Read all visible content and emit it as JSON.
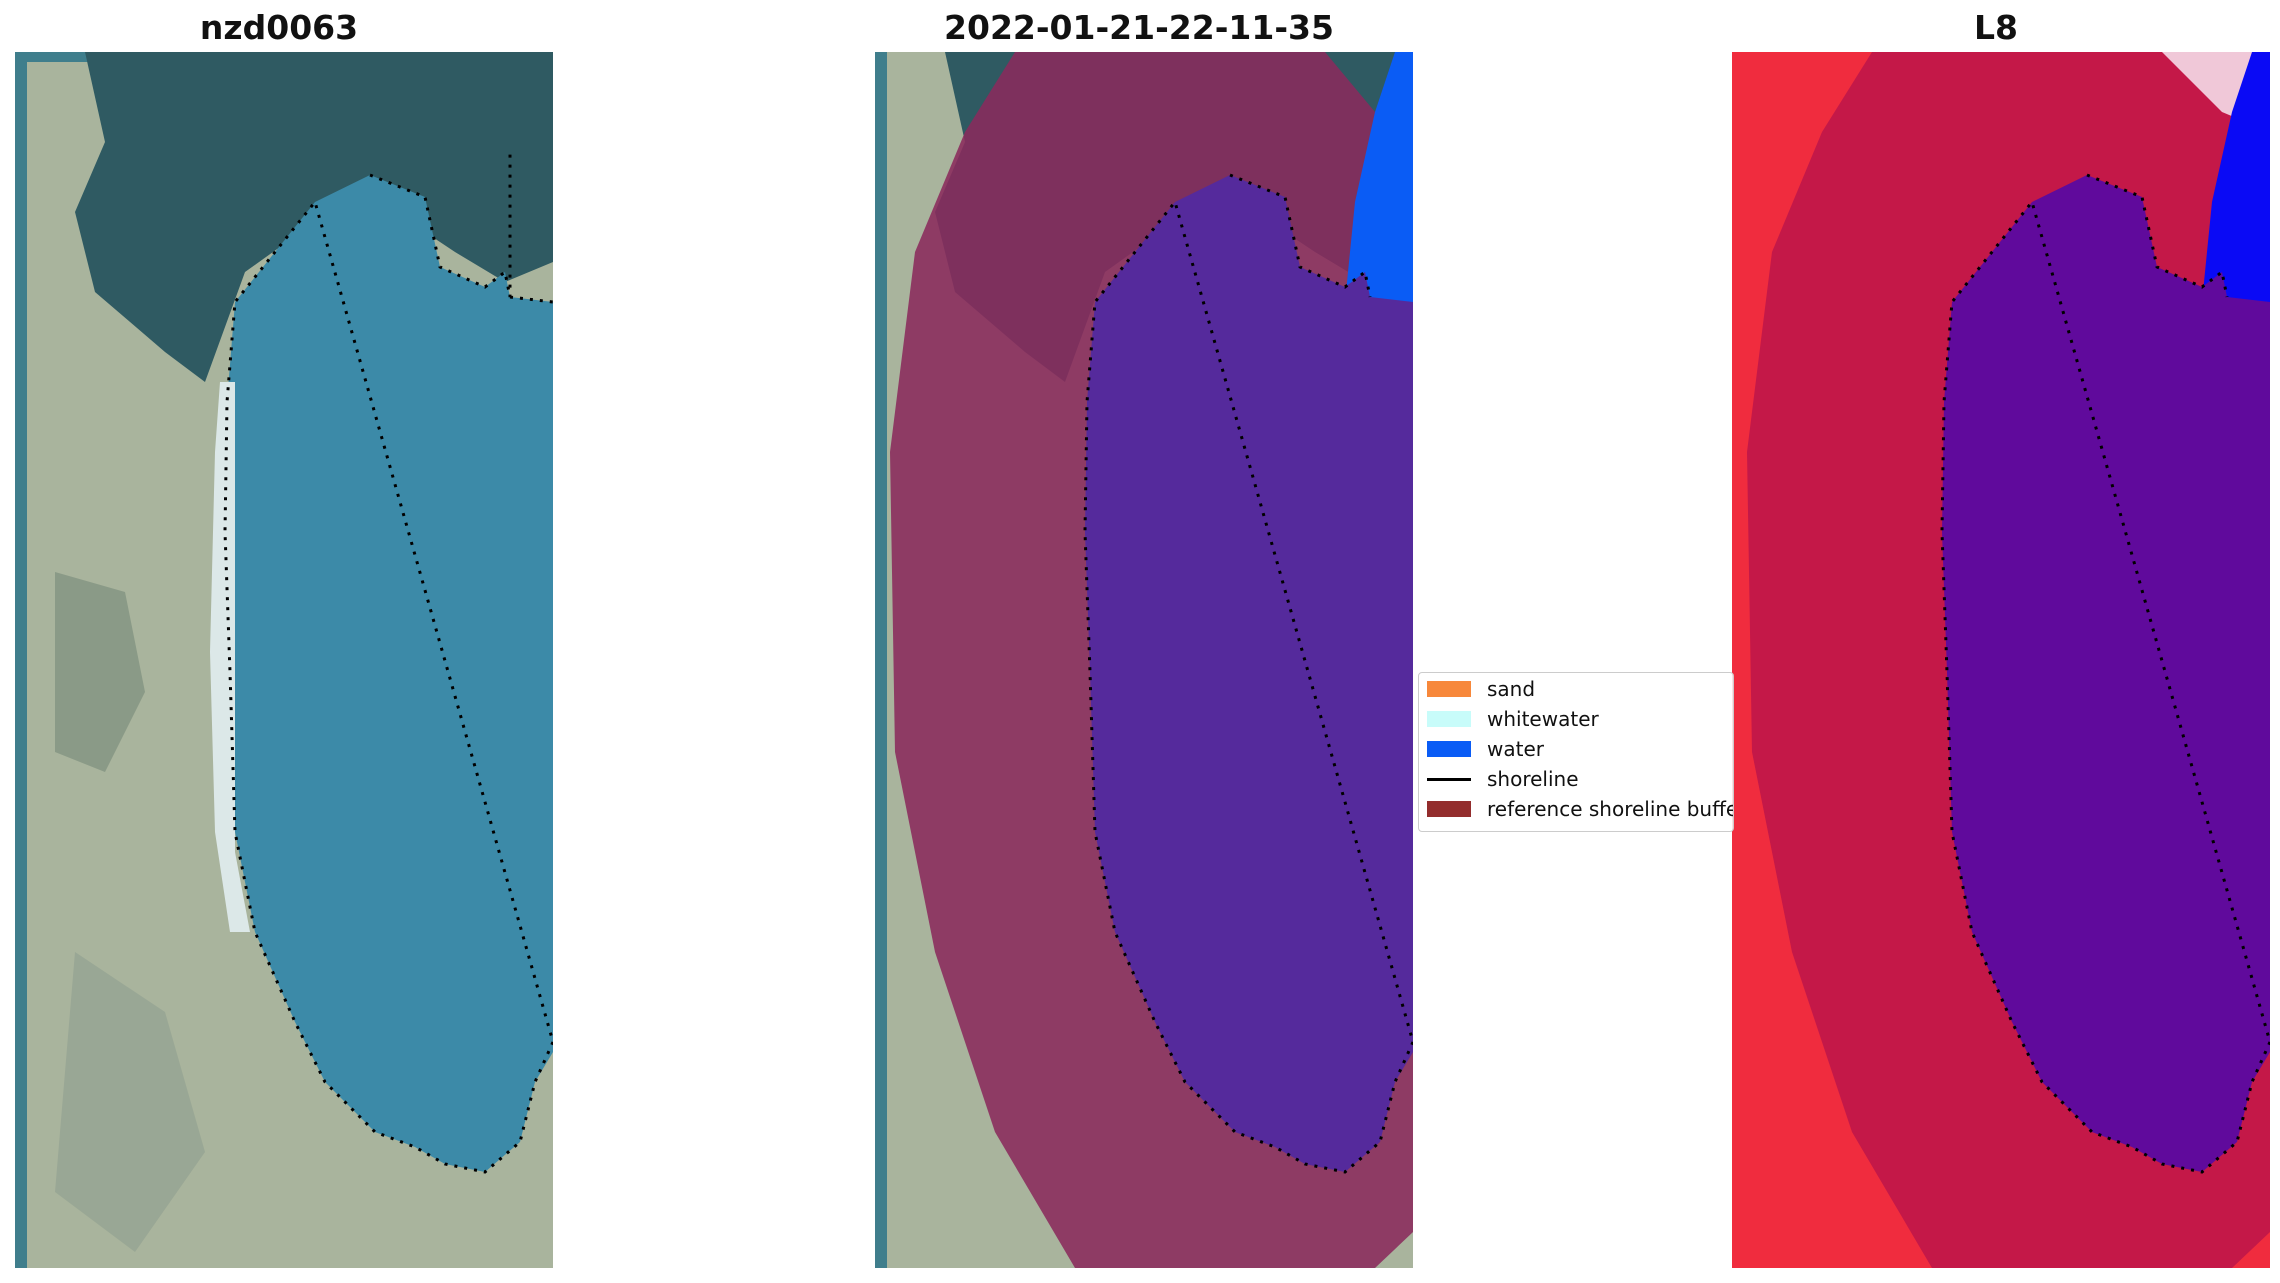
{
  "panels": [
    {
      "title": "nzd0063"
    },
    {
      "title": "2022-01-21-22-11-35"
    },
    {
      "title": "L8"
    }
  ],
  "legend": {
    "items": [
      {
        "label": "sand",
        "color": "#f7883b",
        "kind": "patch"
      },
      {
        "label": "whitewater",
        "color": "#c8fcfa",
        "kind": "patch"
      },
      {
        "label": "water",
        "color": "#0a5cf5",
        "kind": "patch"
      },
      {
        "label": "shoreline",
        "color": "#000000",
        "kind": "line"
      },
      {
        "label": "reference shoreline buffer",
        "color": "#932d2d",
        "kind": "patch"
      }
    ]
  },
  "colors": {
    "rgb_background": "#a9b49d",
    "rgb_water": "#3c8aa8",
    "rgb_dark_vegetation": "#2f5a62",
    "buffer_overlay": "#8a2a5c",
    "classified_water": "#552a9c",
    "ocean_blue": "#0a5cf5",
    "mndwi_land": "#f02c3e",
    "mndwi_buffer": "#c41848",
    "mndwi_water": "#600a9c",
    "mndwi_ocean": "#0a0af5"
  }
}
